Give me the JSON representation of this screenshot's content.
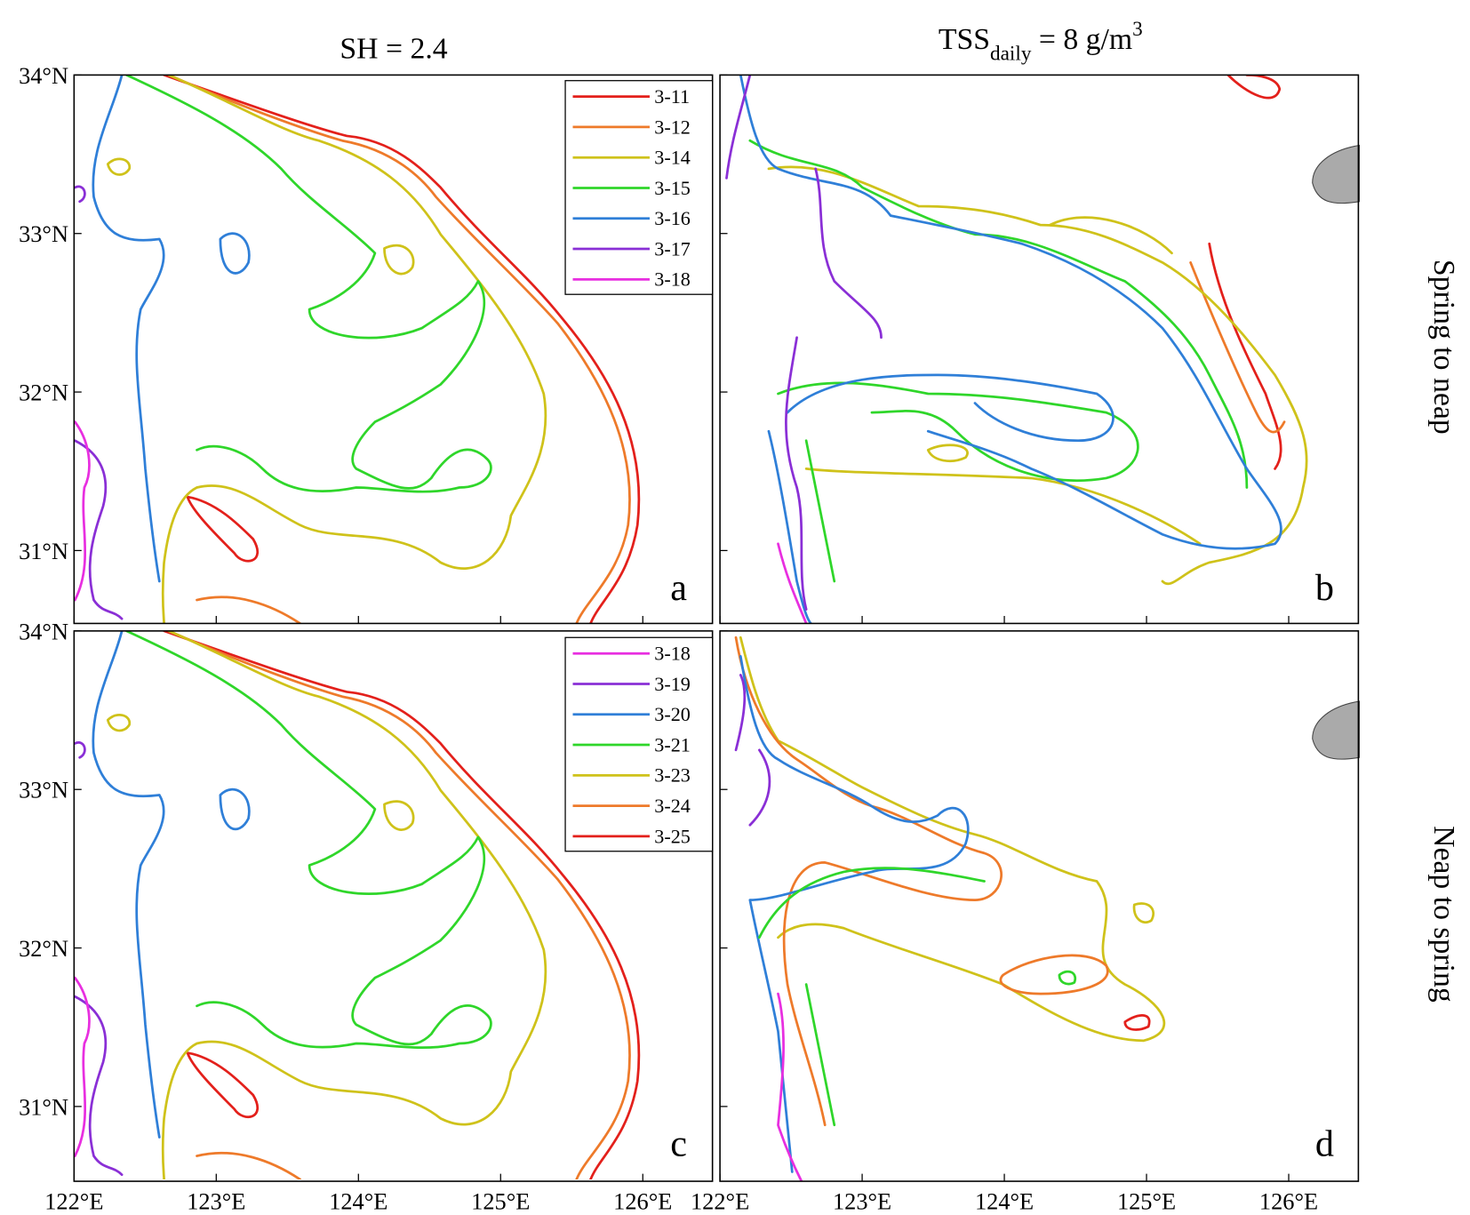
{
  "titles": {
    "left": "SH = 2.4",
    "right": {
      "text": "TSS",
      "subscript": "daily",
      "rest": " = 8 g/m",
      "superscript": "3"
    }
  },
  "row_labels": [
    "Spring to neap",
    "Neap to spring"
  ],
  "panel_labels": [
    "a",
    "b",
    "c",
    "d"
  ],
  "legends": [
    [
      {
        "name": "3-11",
        "color": "#e3201b"
      },
      {
        "name": "3-12",
        "color": "#ee7a2a"
      },
      {
        "name": "3-14",
        "color": "#cfc21a"
      },
      {
        "name": "3-15",
        "color": "#2fd62a"
      },
      {
        "name": "3-16",
        "color": "#2f7fd8"
      },
      {
        "name": "3-17",
        "color": "#8a2fd6"
      },
      {
        "name": "3-18",
        "color": "#e82fe0"
      }
    ],
    [
      {
        "name": "3-18",
        "color": "#e82fe0"
      },
      {
        "name": "3-19",
        "color": "#8a2fd6"
      },
      {
        "name": "3-20",
        "color": "#2f7fd8"
      },
      {
        "name": "3-21",
        "color": "#2fd62a"
      },
      {
        "name": "3-23",
        "color": "#cfc21a"
      },
      {
        "name": "3-24",
        "color": "#ee7a2a"
      },
      {
        "name": "3-25",
        "color": "#e3201b"
      }
    ]
  ],
  "axes": {
    "xlim": [
      122,
      126.49
    ],
    "ylim": [
      30.54,
      34
    ],
    "xticks": [
      {
        "value": 122,
        "label": "122°E"
      },
      {
        "value": 123,
        "label": "123°E"
      },
      {
        "value": 124,
        "label": "124°E"
      },
      {
        "value": 125,
        "label": "125°E"
      },
      {
        "value": 126,
        "label": "126°E"
      }
    ],
    "yticks": [
      {
        "value": 31,
        "label": "31°N"
      },
      {
        "value": 32,
        "label": "32°N"
      },
      {
        "value": 33,
        "label": "33°N"
      },
      {
        "value": 34,
        "label": "34°N"
      }
    ]
  }
}
